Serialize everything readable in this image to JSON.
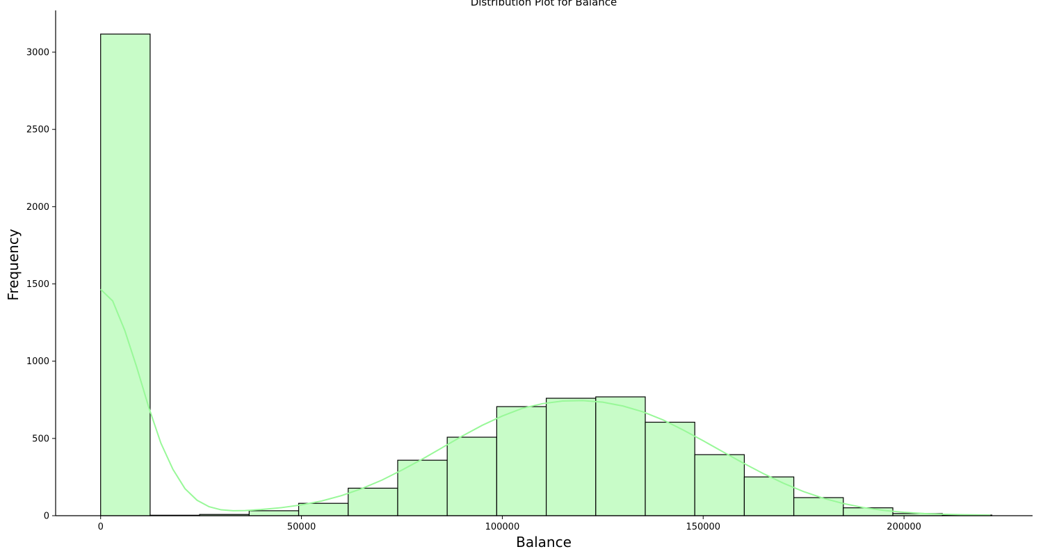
{
  "chart_data": {
    "type": "bar",
    "title": "Distribution Plot for Balance",
    "xlabel": "Balance",
    "ylabel": "Frequency",
    "xlim": [
      -11200,
      232000
    ],
    "ylim": [
      0,
      3270
    ],
    "xticks": [
      0,
      50000,
      100000,
      150000,
      200000
    ],
    "yticks": [
      0,
      500,
      1000,
      1500,
      2000,
      2500,
      3000
    ],
    "grid": false,
    "bar_fill": "#c8fcc8",
    "bar_edge": "#000000",
    "kde_color": "#98f898",
    "bin_edges": [
      0,
      12326,
      24652,
      36978,
      49304,
      61630,
      73956,
      86282,
      98608,
      110934,
      123260,
      135586,
      147912,
      160238,
      172564,
      184890,
      197216,
      209542,
      221868
    ],
    "counts": [
      3117,
      3,
      8,
      32,
      80,
      178,
      359,
      508,
      706,
      760,
      769,
      605,
      395,
      251,
      117,
      51,
      14,
      4
    ],
    "kde": {
      "x": [
        0,
        3000,
        6000,
        9000,
        12000,
        15000,
        18000,
        21000,
        24000,
        27000,
        30000,
        33000,
        36000,
        40000,
        45000,
        50000,
        55000,
        60000,
        65000,
        70000,
        75000,
        80000,
        85000,
        90000,
        95000,
        100000,
        105000,
        110000,
        115000,
        120000,
        125000,
        130000,
        135000,
        140000,
        145000,
        150000,
        155000,
        160000,
        165000,
        170000,
        175000,
        180000,
        185000,
        190000,
        195000,
        200000,
        205000,
        210000,
        215000,
        221500
      ],
      "y": [
        1465,
        1390,
        1200,
        960,
        700,
        470,
        300,
        175,
        100,
        58,
        38,
        32,
        33,
        40,
        52,
        70,
        95,
        130,
        175,
        230,
        295,
        365,
        440,
        515,
        585,
        645,
        695,
        725,
        742,
        745,
        735,
        710,
        672,
        620,
        555,
        485,
        412,
        340,
        272,
        210,
        156,
        112,
        78,
        52,
        34,
        22,
        14,
        9,
        6,
        4
      ]
    }
  }
}
